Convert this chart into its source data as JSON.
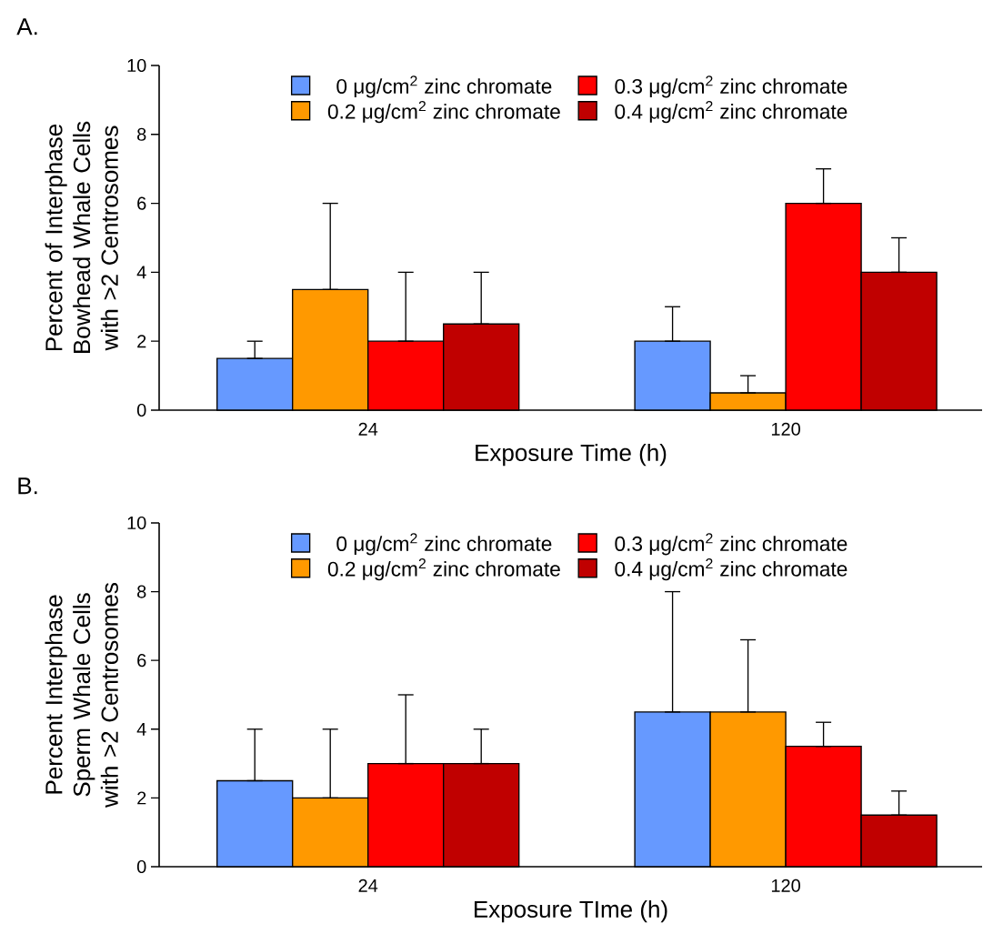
{
  "chart_data": [
    {
      "type": "bar",
      "annotations": [
        "A."
      ],
      "xlabel": "Exposure Time (h)",
      "ylabel": "Percent of Interphase Bowhead Whale Cells with >2 Centrosomes",
      "categories": [
        "24",
        "120"
      ],
      "ylim": [
        0,
        10
      ],
      "yticks": [
        0,
        2,
        4,
        6,
        8,
        10
      ],
      "legend": "top",
      "series": [
        {
          "name": "0 μg/cm$^{2}$ zinc chromate",
          "color": "#6699ff",
          "values": [
            1.5,
            2
          ],
          "errors": [
            [
              1.5,
              2
            ],
            [
              2,
              3
            ]
          ]
        },
        {
          "name": "0.2 μg/cm$^{2}$ zinc chromate",
          "color": "#ff9900",
          "values": [
            3.5,
            0.5
          ],
          "errors": [
            [
              3.5,
              6
            ],
            [
              0.5,
              1
            ]
          ]
        },
        {
          "name": "0.3 μg/cm$^{2}$ zinc chromate",
          "color": "#ff0000",
          "values": [
            2,
            6
          ],
          "errors": [
            [
              2,
              4
            ],
            [
              6,
              7
            ]
          ]
        },
        {
          "name": "0.4 μg/cm$^{2}$ zinc chromate",
          "color": "#c00000",
          "values": [
            2.5,
            4
          ],
          "errors": [
            [
              2.5,
              4
            ],
            [
              4,
              5
            ]
          ]
        }
      ]
    },
    {
      "type": "bar",
      "annotations": [
        "B."
      ],
      "xlabel": "Exposure TIme (h)",
      "ylabel": "Percent Interphase Sperm Whale Cells with >2 Centrosomes",
      "categories": [
        "24",
        "120"
      ],
      "ylim": [
        0,
        10
      ],
      "yticks": [
        0,
        2,
        4,
        6,
        8,
        10
      ],
      "legend": "top",
      "series": [
        {
          "name": "0 μg/cm$^{2}$ zinc chromate",
          "color": "#6699ff",
          "values": [
            2.5,
            4.5
          ],
          "errors": [
            [
              2.5,
              4
            ],
            [
              4.5,
              8
            ]
          ]
        },
        {
          "name": "0.2 μg/cm$^{2}$ zinc chromate",
          "color": "#ff9900",
          "values": [
            2,
            4.5
          ],
          "errors": [
            [
              2,
              4
            ],
            [
              4.5,
              6.6
            ]
          ]
        },
        {
          "name": "0.3 μg/cm$^{2}$ zinc chromate",
          "color": "#ff0000",
          "values": [
            3,
            3.5
          ],
          "errors": [
            [
              3,
              5
            ],
            [
              3.5,
              4.2
            ]
          ]
        },
        {
          "name": "0.4 μg/cm$^{2}$ zinc chromate",
          "color": "#c00000",
          "values": [
            3,
            1.5
          ],
          "errors": [
            [
              3,
              4
            ],
            [
              1.5,
              2.2
            ]
          ]
        }
      ]
    }
  ]
}
